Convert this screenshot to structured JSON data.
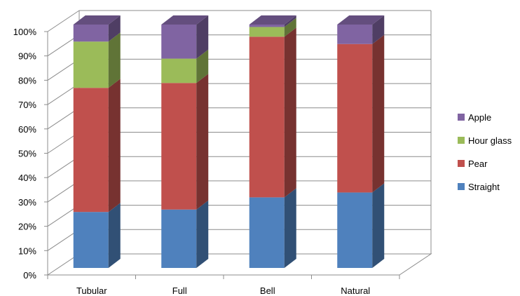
{
  "chart_data": {
    "type": "bar",
    "stacked": true,
    "percent": true,
    "three_d": true,
    "categories": [
      "Tubular",
      "Full",
      "Bell",
      "Natural"
    ],
    "series": [
      {
        "name": "Straight",
        "color": "#4F81BD",
        "values": [
          23,
          24,
          29,
          31
        ]
      },
      {
        "name": "Pear",
        "color": "#C0504D",
        "values": [
          51,
          52,
          66,
          61
        ]
      },
      {
        "name": "Hour glass",
        "color": "#9BBB59",
        "values": [
          19,
          10,
          4,
          0
        ]
      },
      {
        "name": "Apple",
        "color": "#8064A2",
        "values": [
          7,
          14,
          1,
          8
        ]
      }
    ],
    "y_ticks": [
      "0%",
      "10%",
      "20%",
      "30%",
      "40%",
      "50%",
      "60%",
      "70%",
      "80%",
      "90%",
      "100%"
    ],
    "ylim": [
      0,
      100
    ],
    "grid": true,
    "legend": {
      "position": "right",
      "order": [
        "Apple",
        "Hour glass",
        "Pear",
        "Straight"
      ]
    }
  }
}
